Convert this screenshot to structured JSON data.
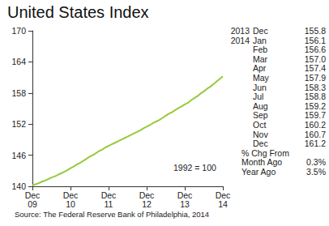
{
  "chart_data": {
    "type": "line",
    "title": "United States Index",
    "annotations": [
      "1992 = 100"
    ],
    "source": "Source: The Federal Reserve Bank of Philadelphia, 2014",
    "categories": [
      "Dec\n09",
      null,
      null,
      null,
      null,
      null,
      null,
      null,
      null,
      null,
      null,
      null,
      "Dec\n10",
      null,
      null,
      null,
      null,
      null,
      null,
      null,
      null,
      null,
      null,
      null,
      "Dec\n11",
      null,
      null,
      null,
      null,
      null,
      null,
      null,
      null,
      null,
      null,
      null,
      "Dec\n12",
      null,
      null,
      null,
      null,
      null,
      null,
      null,
      null,
      null,
      null,
      null,
      "Dec\n13",
      null,
      null,
      null,
      null,
      null,
      null,
      null,
      null,
      null,
      null,
      null,
      "Dec\n14"
    ],
    "values": [
      140.2,
      140.4,
      140.6,
      140.9,
      141.1,
      141.4,
      141.7,
      141.9,
      142.2,
      142.5,
      142.8,
      143.1,
      143.5,
      143.8,
      144.2,
      144.5,
      144.9,
      145.3,
      145.7,
      146.0,
      146.4,
      146.8,
      147.1,
      147.5,
      147.8,
      148.1,
      148.4,
      148.7,
      149.0,
      149.3,
      149.6,
      149.9,
      150.2,
      150.5,
      150.8,
      151.2,
      151.5,
      151.8,
      152.2,
      152.5,
      152.8,
      153.2,
      153.6,
      154.0,
      154.3,
      154.7,
      155.1,
      155.4,
      155.8,
      156.1,
      156.6,
      157.0,
      157.4,
      157.9,
      158.3,
      158.8,
      159.2,
      159.7,
      160.2,
      160.7,
      161.2
    ],
    "color": "#99c93c",
    "ylim": [
      140,
      170
    ],
    "yticks": [
      140,
      146,
      152,
      158,
      164,
      170
    ],
    "grid": false
  },
  "side_table": {
    "rows": [
      [
        "2013",
        "Dec",
        "155.8"
      ],
      [
        "2014",
        "Jan",
        "156.1"
      ],
      [
        null,
        "Feb",
        "156.6"
      ],
      [
        null,
        "Mar",
        "157.0"
      ],
      [
        null,
        "Apr",
        "157.4"
      ],
      [
        null,
        "May",
        "157.9"
      ],
      [
        null,
        "Jun",
        "158.3"
      ],
      [
        null,
        "Jul",
        "158.8"
      ],
      [
        null,
        "Aug",
        "159.2"
      ],
      [
        null,
        "Sep",
        "159.7"
      ],
      [
        null,
        "Oct",
        "160.2"
      ],
      [
        null,
        "Nov",
        "160.7"
      ],
      [
        null,
        "Dec",
        "161.2"
      ]
    ],
    "change_heading": "% Chg From",
    "change_rows": [
      [
        "Month Ago",
        "0.3%"
      ],
      [
        "Year Ago",
        "3.5%"
      ]
    ]
  }
}
